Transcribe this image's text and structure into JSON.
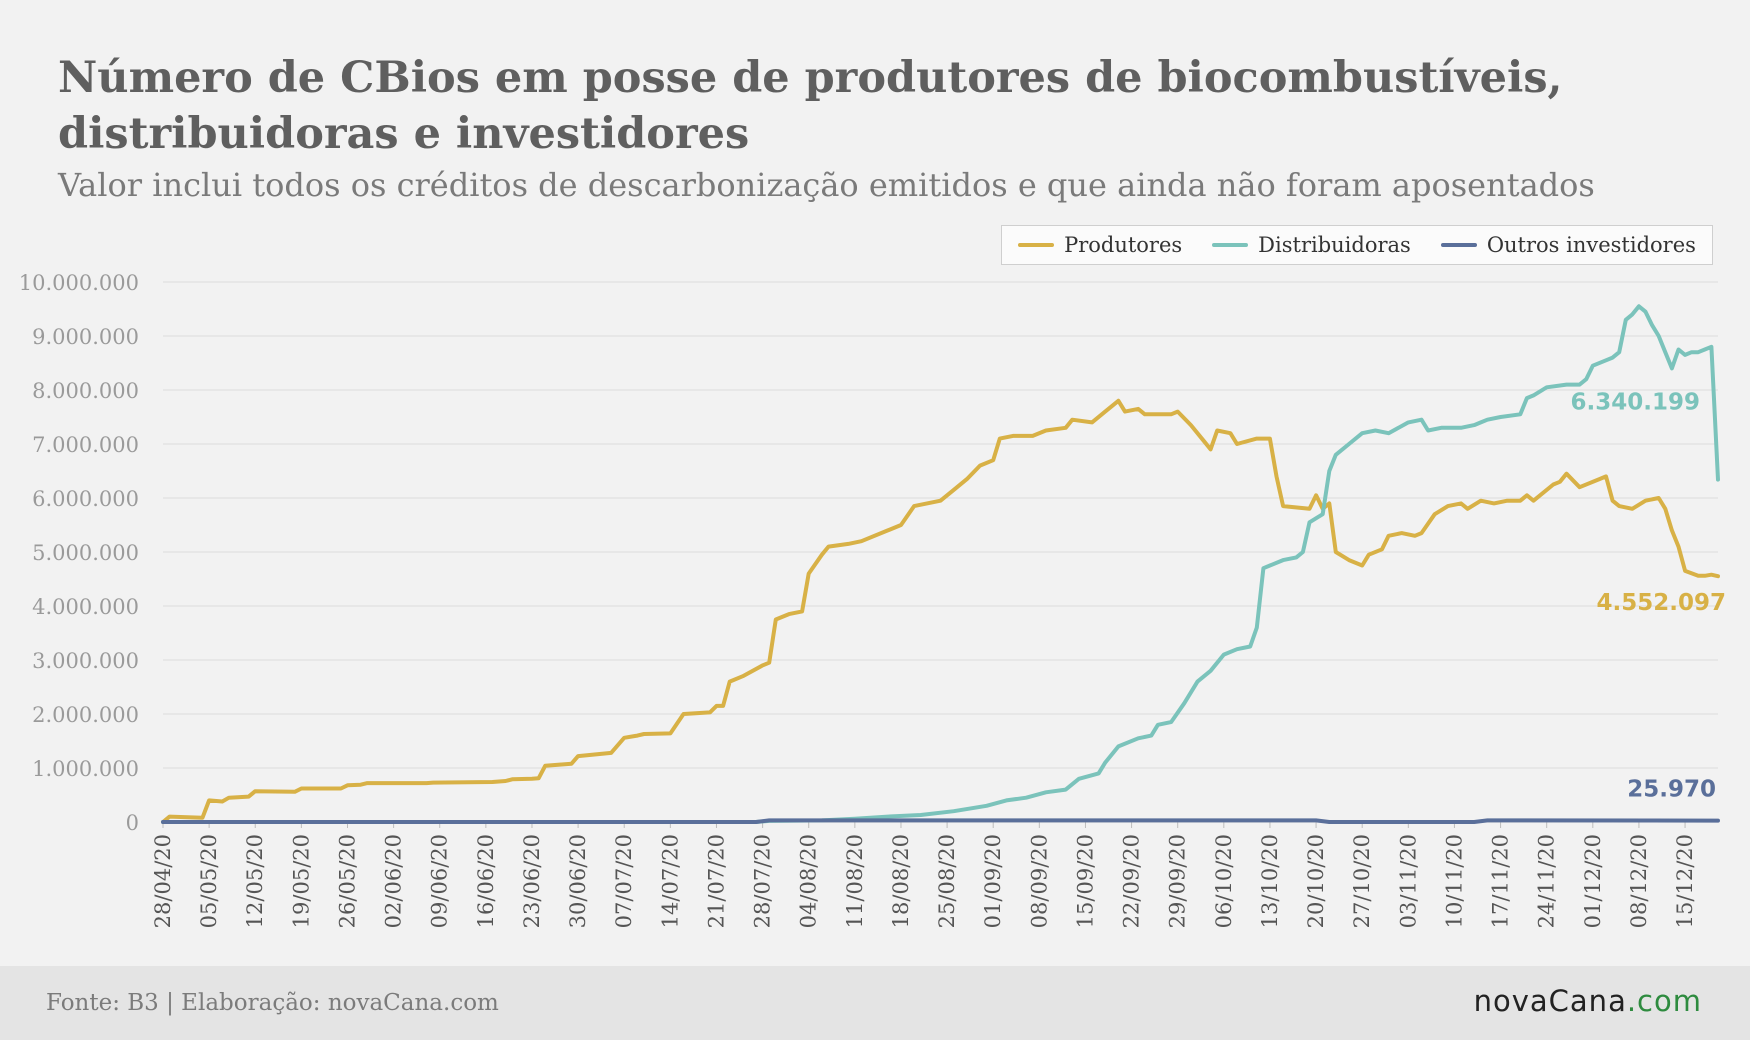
{
  "chart_data": {
    "type": "line",
    "title_line1": "Número de CBios em posse de produtores de biocombustíveis,",
    "title_line2": "distribuidoras e investidores",
    "subtitle": "Valor inclui todos os créditos de descarbonização emitidos e que ainda não foram aposentados",
    "start_date": "2020-04-28",
    "x_unit": "days since 28/04/20",
    "x_max": 236,
    "ylim": [
      0,
      10000000
    ],
    "y_ticks": [
      0,
      1000000,
      2000000,
      3000000,
      4000000,
      5000000,
      6000000,
      7000000,
      8000000,
      9000000,
      10000000
    ],
    "y_tick_labels": [
      "0",
      "1.000.000",
      "2.000.000",
      "3.000.000",
      "4.000.000",
      "5.000.000",
      "6.000.000",
      "7.000.000",
      "8.000.000",
      "9.000.000",
      "10.000.000"
    ],
    "x_tick_labels": [
      "28/04/20",
      "05/05/20",
      "12/05/20",
      "19/05/20",
      "26/05/20",
      "02/06/20",
      "09/06/20",
      "16/06/20",
      "23/06/20",
      "30/06/20",
      "07/07/20",
      "14/07/20",
      "21/07/20",
      "28/07/20",
      "04/08/20",
      "11/08/20",
      "18/08/20",
      "25/08/20",
      "01/09/20",
      "08/09/20",
      "15/09/20",
      "22/09/20",
      "29/09/20",
      "06/10/20",
      "13/10/20",
      "20/10/20",
      "27/10/20",
      "03/11/20",
      "10/11/20",
      "17/11/20",
      "24/11/20",
      "01/12/20",
      "08/12/20",
      "15/12/20"
    ],
    "x_tick_step_days": 7,
    "grid": true,
    "legend_position": "top-right",
    "series": [
      {
        "name": "Produtores",
        "color": "#d8b146",
        "end_label": "4.552.097",
        "points": [
          [
            0,
            0
          ],
          [
            1,
            100000
          ],
          [
            6,
            80000
          ],
          [
            7,
            400000
          ],
          [
            9,
            380000
          ],
          [
            10,
            450000
          ],
          [
            13,
            470000
          ],
          [
            14,
            570000
          ],
          [
            20,
            560000
          ],
          [
            21,
            620000
          ],
          [
            27,
            620000
          ],
          [
            28,
            680000
          ],
          [
            30,
            690000
          ],
          [
            31,
            720000
          ],
          [
            40,
            720000
          ],
          [
            41,
            730000
          ],
          [
            50,
            740000
          ],
          [
            52,
            760000
          ],
          [
            53,
            790000
          ],
          [
            56,
            800000
          ],
          [
            57,
            810000
          ],
          [
            58,
            1040000
          ],
          [
            62,
            1080000
          ],
          [
            63,
            1220000
          ],
          [
            68,
            1280000
          ],
          [
            70,
            1560000
          ],
          [
            72,
            1600000
          ],
          [
            73,
            1630000
          ],
          [
            77,
            1640000
          ],
          [
            79,
            2000000
          ],
          [
            83,
            2030000
          ],
          [
            84,
            2150000
          ],
          [
            85,
            2150000
          ],
          [
            86,
            2600000
          ],
          [
            88,
            2700000
          ],
          [
            91,
            2900000
          ],
          [
            92,
            2950000
          ],
          [
            93,
            3750000
          ],
          [
            95,
            3850000
          ],
          [
            97,
            3900000
          ],
          [
            98,
            4600000
          ],
          [
            100,
            4950000
          ],
          [
            101,
            5100000
          ],
          [
            104,
            5150000
          ],
          [
            106,
            5200000
          ],
          [
            110,
            5400000
          ],
          [
            112,
            5500000
          ],
          [
            114,
            5850000
          ],
          [
            118,
            5950000
          ],
          [
            120,
            6150000
          ],
          [
            122,
            6350000
          ],
          [
            124,
            6600000
          ],
          [
            126,
            6700000
          ],
          [
            127,
            7100000
          ],
          [
            129,
            7150000
          ],
          [
            132,
            7150000
          ],
          [
            134,
            7250000
          ],
          [
            137,
            7300000
          ],
          [
            138,
            7450000
          ],
          [
            141,
            7400000
          ],
          [
            143,
            7600000
          ],
          [
            145,
            7800000
          ],
          [
            146,
            7600000
          ],
          [
            148,
            7650000
          ],
          [
            149,
            7550000
          ],
          [
            153,
            7550000
          ],
          [
            154,
            7600000
          ],
          [
            156,
            7350000
          ],
          [
            158,
            7050000
          ],
          [
            159,
            6900000
          ],
          [
            160,
            7250000
          ],
          [
            162,
            7200000
          ],
          [
            163,
            7000000
          ],
          [
            166,
            7100000
          ],
          [
            168,
            7100000
          ],
          [
            169,
            6400000
          ],
          [
            170,
            5850000
          ],
          [
            174,
            5800000
          ],
          [
            175,
            6050000
          ],
          [
            176,
            5800000
          ],
          [
            177,
            5900000
          ],
          [
            178,
            5000000
          ],
          [
            180,
            4850000
          ],
          [
            182,
            4750000
          ],
          [
            183,
            4950000
          ],
          [
            185,
            5050000
          ],
          [
            186,
            5300000
          ],
          [
            188,
            5350000
          ],
          [
            190,
            5300000
          ],
          [
            191,
            5350000
          ],
          [
            193,
            5700000
          ],
          [
            195,
            5850000
          ],
          [
            197,
            5900000
          ],
          [
            198,
            5800000
          ],
          [
            200,
            5950000
          ],
          [
            202,
            5900000
          ],
          [
            204,
            5950000
          ],
          [
            206,
            5950000
          ],
          [
            207,
            6050000
          ],
          [
            208,
            5950000
          ],
          [
            211,
            6250000
          ],
          [
            212,
            6300000
          ],
          [
            213,
            6450000
          ],
          [
            215,
            6200000
          ],
          [
            218,
            6350000
          ],
          [
            219,
            6400000
          ],
          [
            220,
            5950000
          ],
          [
            221,
            5850000
          ],
          [
            223,
            5800000
          ],
          [
            225,
            5950000
          ],
          [
            227,
            6000000
          ],
          [
            228,
            5800000
          ],
          [
            229,
            5400000
          ],
          [
            230,
            5100000
          ],
          [
            231,
            4650000
          ],
          [
            233,
            4560000
          ],
          [
            234,
            4560000
          ],
          [
            235,
            4580000
          ],
          [
            236,
            4552097
          ]
        ]
      },
      {
        "name": "Distribuidoras",
        "color": "#7bc3bb",
        "end_label": "6.340.199",
        "points": [
          [
            0,
            0
          ],
          [
            90,
            0
          ],
          [
            92,
            20000
          ],
          [
            100,
            30000
          ],
          [
            105,
            60000
          ],
          [
            110,
            100000
          ],
          [
            115,
            130000
          ],
          [
            120,
            200000
          ],
          [
            125,
            300000
          ],
          [
            128,
            400000
          ],
          [
            131,
            450000
          ],
          [
            134,
            550000
          ],
          [
            137,
            600000
          ],
          [
            139,
            800000
          ],
          [
            142,
            900000
          ],
          [
            143,
            1100000
          ],
          [
            145,
            1400000
          ],
          [
            148,
            1550000
          ],
          [
            150,
            1600000
          ],
          [
            151,
            1800000
          ],
          [
            153,
            1850000
          ],
          [
            155,
            2200000
          ],
          [
            157,
            2600000
          ],
          [
            159,
            2800000
          ],
          [
            161,
            3100000
          ],
          [
            163,
            3200000
          ],
          [
            165,
            3250000
          ],
          [
            166,
            3600000
          ],
          [
            167,
            4700000
          ],
          [
            170,
            4850000
          ],
          [
            172,
            4900000
          ],
          [
            173,
            5000000
          ],
          [
            174,
            5550000
          ],
          [
            176,
            5700000
          ],
          [
            177,
            6500000
          ],
          [
            178,
            6800000
          ],
          [
            180,
            7000000
          ],
          [
            182,
            7200000
          ],
          [
            184,
            7250000
          ],
          [
            186,
            7200000
          ],
          [
            189,
            7400000
          ],
          [
            191,
            7450000
          ],
          [
            192,
            7250000
          ],
          [
            194,
            7300000
          ],
          [
            197,
            7300000
          ],
          [
            199,
            7350000
          ],
          [
            200,
            7400000
          ],
          [
            201,
            7450000
          ],
          [
            203,
            7500000
          ],
          [
            206,
            7550000
          ],
          [
            207,
            7850000
          ],
          [
            208,
            7900000
          ],
          [
            210,
            8050000
          ],
          [
            213,
            8100000
          ],
          [
            215,
            8100000
          ],
          [
            216,
            8200000
          ],
          [
            217,
            8450000
          ],
          [
            219,
            8550000
          ],
          [
            220,
            8600000
          ],
          [
            221,
            8700000
          ],
          [
            222,
            9300000
          ],
          [
            223,
            9400000
          ],
          [
            224,
            9550000
          ],
          [
            225,
            9450000
          ],
          [
            226,
            9200000
          ],
          [
            227,
            9000000
          ],
          [
            228,
            8700000
          ],
          [
            229,
            8400000
          ],
          [
            230,
            8750000
          ],
          [
            231,
            8650000
          ],
          [
            232,
            8700000
          ],
          [
            233,
            8700000
          ],
          [
            234,
            8750000
          ],
          [
            235,
            8800000
          ],
          [
            236,
            6340199
          ]
        ]
      },
      {
        "name": "Outros investidores",
        "color": "#5a6f9a",
        "end_label": "25.970",
        "points": [
          [
            0,
            0
          ],
          [
            90,
            0
          ],
          [
            92,
            30000
          ],
          [
            175,
            30000
          ],
          [
            177,
            0
          ],
          [
            199,
            0
          ],
          [
            201,
            30000
          ],
          [
            236,
            25970
          ]
        ]
      }
    ]
  },
  "footer": {
    "source": "Fonte: B3 | Elaboração: novaCana.com",
    "logo_main": "novaCana",
    "logo_suffix": ".com"
  }
}
